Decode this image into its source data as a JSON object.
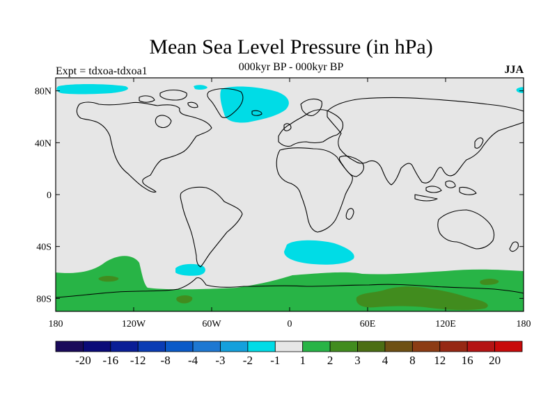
{
  "title": "Mean Sea Level Pressure (in hPa)",
  "subtitle": "000kyr BP - 000kyr BP",
  "left_label": "Expt = tdxoa-tdxoa1",
  "right_label": "JJA",
  "map": {
    "projection": "cylindrical-equidistant",
    "lon_range": [
      -180,
      180
    ],
    "lat_range": [
      -90,
      90
    ],
    "background_color": "#e6e6e6",
    "x_ticks": [
      {
        "lon": -180,
        "label": "180"
      },
      {
        "lon": -120,
        "label": "120W"
      },
      {
        "lon": -60,
        "label": "60W"
      },
      {
        "lon": 0,
        "label": "0"
      },
      {
        "lon": 60,
        "label": "60E"
      },
      {
        "lon": 120,
        "label": "120E"
      },
      {
        "lon": 180,
        "label": "180"
      }
    ],
    "y_ticks": [
      {
        "lat": 80,
        "label": "80N"
      },
      {
        "lat": 40,
        "label": "40N"
      },
      {
        "lat": 0,
        "label": "0"
      },
      {
        "lat": -40,
        "label": "40S"
      },
      {
        "lat": -80,
        "label": "80S"
      }
    ]
  },
  "colorbar": {
    "colors": [
      "#1a0a5a",
      "#0a0a78",
      "#0a1e96",
      "#0a3cb4",
      "#0a5ac8",
      "#1e78d2",
      "#14a0dc",
      "#00dce6",
      "#e6e6e6",
      "#28b446",
      "#418c1e",
      "#4b6e14",
      "#6e5014",
      "#8c3c14",
      "#962814",
      "#b41414",
      "#c80a0a"
    ],
    "labels": [
      "-20",
      "-16",
      "-12",
      "-8",
      "-4",
      "-3",
      "-2",
      "-1",
      "1",
      "2",
      "3",
      "4",
      "8",
      "12",
      "16",
      "20"
    ]
  }
}
